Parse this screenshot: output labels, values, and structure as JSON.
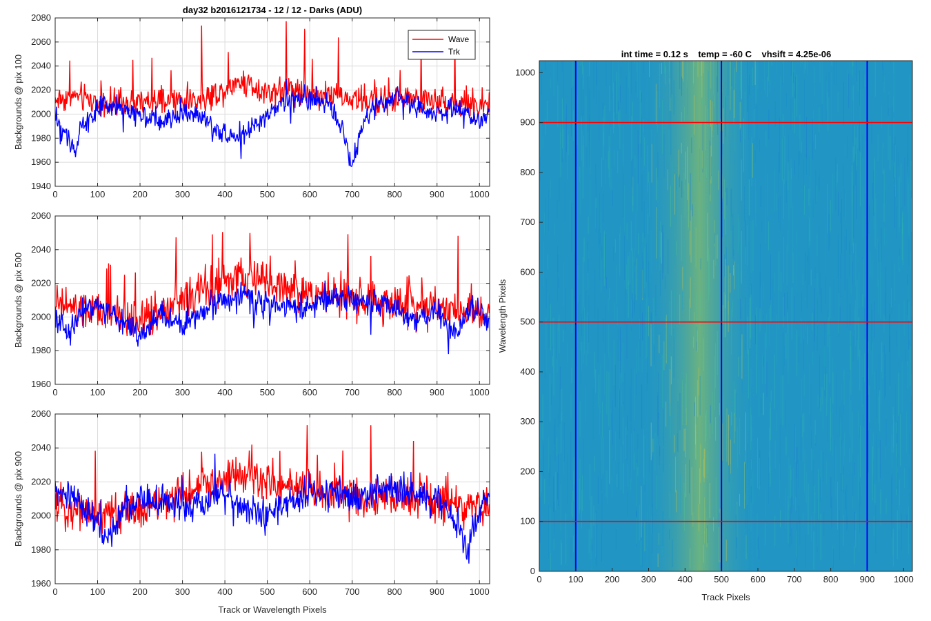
{
  "figure": {
    "title": "day32 b2016121734 - 12 / 12 - Darks (ADU)"
  },
  "chart_data": [
    {
      "type": "line",
      "ylabel": "Backgrounds @ pix 100",
      "xlabel": "",
      "xlim": [
        0,
        1024
      ],
      "ylim": [
        1940,
        2080
      ],
      "yticks": [
        1940,
        1960,
        1980,
        2000,
        2020,
        2040,
        2060,
        2080
      ],
      "xticks": [
        0,
        100,
        200,
        300,
        400,
        500,
        600,
        700,
        800,
        900,
        1000
      ],
      "grid": true,
      "legend": {
        "placement": "top-right",
        "entries": [
          "Wave",
          "Trk"
        ]
      },
      "series": [
        {
          "name": "Wave",
          "color": "#ff0000",
          "anchors": [
            [
              0,
              2012
            ],
            [
              50,
              2015
            ],
            [
              100,
              2010
            ],
            [
              150,
              2008
            ],
            [
              200,
              2009
            ],
            [
              250,
              2010
            ],
            [
              300,
              2011
            ],
            [
              350,
              2013
            ],
            [
              400,
              2020
            ],
            [
              430,
              2028
            ],
            [
              460,
              2025
            ],
            [
              500,
              2018
            ],
            [
              550,
              2022
            ],
            [
              600,
              2018
            ],
            [
              650,
              2016
            ],
            [
              700,
              2012
            ],
            [
              750,
              2011
            ],
            [
              800,
              2012
            ],
            [
              850,
              2013
            ],
            [
              900,
              2011
            ],
            [
              950,
              2010
            ],
            [
              1000,
              2008
            ],
            [
              1023,
              2007
            ]
          ],
          "noise": 9,
          "spike_max": 55
        },
        {
          "name": "Trk",
          "color": "#0000ff",
          "anchors": [
            [
              0,
              1995
            ],
            [
              20,
              1985
            ],
            [
              40,
              1975
            ],
            [
              50,
              1968
            ],
            [
              60,
              1990
            ],
            [
              100,
              2004
            ],
            [
              150,
              2006
            ],
            [
              200,
              2000
            ],
            [
              250,
              1993
            ],
            [
              300,
              2002
            ],
            [
              350,
              1996
            ],
            [
              380,
              1985
            ],
            [
              420,
              1982
            ],
            [
              450,
              1986
            ],
            [
              480,
              1992
            ],
            [
              520,
              2004
            ],
            [
              560,
              2012
            ],
            [
              600,
              2012
            ],
            [
              640,
              2010
            ],
            [
              680,
              1985
            ],
            [
              700,
              1955
            ],
            [
              720,
              1988
            ],
            [
              760,
              2010
            ],
            [
              800,
              2014
            ],
            [
              850,
              2006
            ],
            [
              900,
              2000
            ],
            [
              950,
              2004
            ],
            [
              980,
              1996
            ],
            [
              1000,
              1992
            ],
            [
              1023,
              2002
            ]
          ],
          "noise": 7,
          "spike_max": 18
        }
      ]
    },
    {
      "type": "line",
      "ylabel": "Backgrounds @ pix 500",
      "xlabel": "",
      "xlim": [
        0,
        1024
      ],
      "ylim": [
        1960,
        2060
      ],
      "yticks": [
        1960,
        1980,
        2000,
        2020,
        2040,
        2060
      ],
      "xticks": [
        0,
        100,
        200,
        300,
        400,
        500,
        600,
        700,
        800,
        900,
        1000
      ],
      "grid": true,
      "series": [
        {
          "name": "Wave",
          "color": "#ff0000",
          "anchors": [
            [
              0,
              2008
            ],
            [
              50,
              2004
            ],
            [
              100,
              2002
            ],
            [
              150,
              2000
            ],
            [
              200,
              1998
            ],
            [
              250,
              2004
            ],
            [
              300,
              2010
            ],
            [
              350,
              2016
            ],
            [
              400,
              2020
            ],
            [
              450,
              2024
            ],
            [
              500,
              2020
            ],
            [
              550,
              2017
            ],
            [
              600,
              2014
            ],
            [
              650,
              2012
            ],
            [
              700,
              2010
            ],
            [
              750,
              2008
            ],
            [
              800,
              2008
            ],
            [
              850,
              2007
            ],
            [
              900,
              2006
            ],
            [
              950,
              2004
            ],
            [
              1000,
              2004
            ],
            [
              1023,
              2003
            ]
          ],
          "noise": 9,
          "spike_max": 40
        },
        {
          "name": "Trk",
          "color": "#0000ff",
          "anchors": [
            [
              0,
              2002
            ],
            [
              30,
              1988
            ],
            [
              60,
              2004
            ],
            [
              100,
              2008
            ],
            [
              150,
              1998
            ],
            [
              200,
              1990
            ],
            [
              250,
              2002
            ],
            [
              300,
              1995
            ],
            [
              350,
              2004
            ],
            [
              400,
              2010
            ],
            [
              450,
              2012
            ],
            [
              500,
              2008
            ],
            [
              550,
              2006
            ],
            [
              600,
              2006
            ],
            [
              650,
              2010
            ],
            [
              700,
              2012
            ],
            [
              750,
              2008
            ],
            [
              800,
              2004
            ],
            [
              850,
              1998
            ],
            [
              900,
              2004
            ],
            [
              950,
              1988
            ],
            [
              980,
              2008
            ],
            [
              1023,
              1998
            ]
          ],
          "noise": 6,
          "spike_max": 15
        }
      ]
    },
    {
      "type": "line",
      "ylabel": "Backgrounds @ pix 900",
      "xlabel": "Track or Wavelength Pixels",
      "xlim": [
        0,
        1024
      ],
      "ylim": [
        1960,
        2060
      ],
      "yticks": [
        1960,
        1980,
        2000,
        2020,
        2040,
        2060
      ],
      "xticks": [
        0,
        100,
        200,
        300,
        400,
        500,
        600,
        700,
        800,
        900,
        1000
      ],
      "grid": true,
      "series": [
        {
          "name": "Wave",
          "color": "#ff0000",
          "anchors": [
            [
              0,
              2006
            ],
            [
              50,
              2004
            ],
            [
              100,
              2002
            ],
            [
              150,
              2002
            ],
            [
              200,
              2004
            ],
            [
              250,
              2008
            ],
            [
              300,
              2012
            ],
            [
              350,
              2018
            ],
            [
              400,
              2022
            ],
            [
              450,
              2024
            ],
            [
              500,
              2020
            ],
            [
              550,
              2018
            ],
            [
              600,
              2016
            ],
            [
              650,
              2014
            ],
            [
              700,
              2012
            ],
            [
              750,
              2010
            ],
            [
              800,
              2012
            ],
            [
              850,
              2010
            ],
            [
              900,
              2008
            ],
            [
              950,
              2006
            ],
            [
              1000,
              2005
            ],
            [
              1023,
              2005
            ]
          ],
          "noise": 9,
          "spike_max": 40
        },
        {
          "name": "Trk",
          "color": "#0000ff",
          "anchors": [
            [
              0,
              2014
            ],
            [
              50,
              2010
            ],
            [
              100,
              1996
            ],
            [
              120,
              1984
            ],
            [
              150,
              2000
            ],
            [
              200,
              2010
            ],
            [
              250,
              2008
            ],
            [
              300,
              2004
            ],
            [
              350,
              2010
            ],
            [
              400,
              2012
            ],
            [
              450,
              2004
            ],
            [
              500,
              2000
            ],
            [
              550,
              2008
            ],
            [
              600,
              2012
            ],
            [
              650,
              2014
            ],
            [
              700,
              2010
            ],
            [
              750,
              2014
            ],
            [
              800,
              2016
            ],
            [
              850,
              2012
            ],
            [
              900,
              2008
            ],
            [
              950,
              1996
            ],
            [
              970,
              1980
            ],
            [
              1000,
              2004
            ],
            [
              1023,
              2010
            ]
          ],
          "noise": 7,
          "spike_max": 20
        }
      ]
    },
    {
      "type": "heatmap",
      "title": "int time = 0.12 s    temp = -60 C    vhsift = 4.25e-06",
      "xlabel": "Track Pixels",
      "ylabel": "Wavelength Pixels",
      "xlim": [
        0,
        1024
      ],
      "ylim": [
        0,
        1024
      ],
      "xticks": [
        0,
        100,
        200,
        300,
        400,
        500,
        600,
        700,
        800,
        900,
        1000
      ],
      "yticks": [
        0,
        100,
        200,
        300,
        400,
        500,
        600,
        700,
        800,
        900,
        1000
      ],
      "colormap": "parula",
      "bright_band_center": 440,
      "vertical_markers": {
        "color": "#0000ff",
        "x": [
          100,
          500,
          900
        ]
      },
      "horizontal_markers": {
        "color": "#ff0000",
        "y": [
          100,
          500,
          900
        ]
      }
    }
  ]
}
